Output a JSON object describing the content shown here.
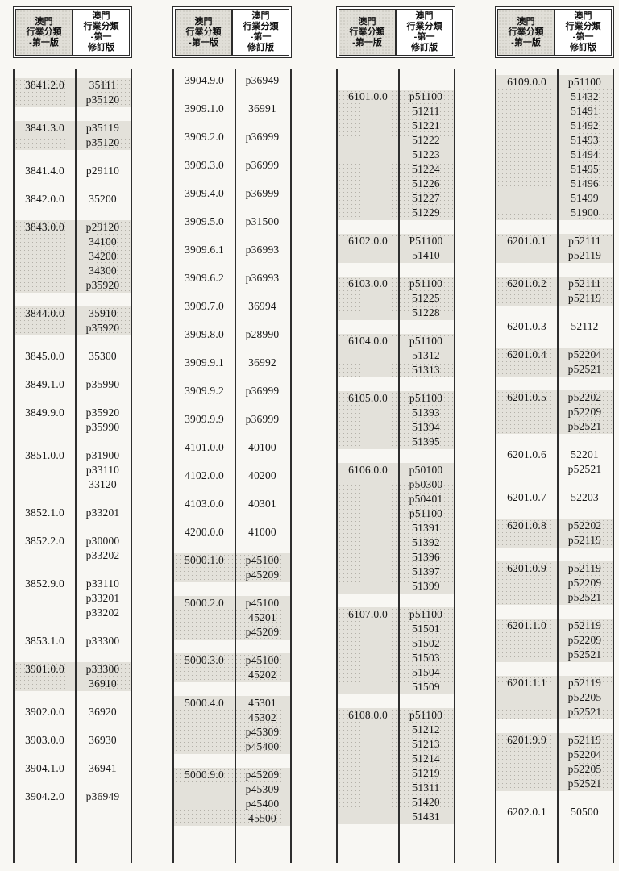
{
  "header": {
    "old_edition_lines": [
      "澳門",
      "行業分類",
      "-第一版"
    ],
    "revised_edition_lines": [
      "澳門",
      "行業分類",
      "-第一",
      "修訂版"
    ]
  },
  "colors": {
    "ink": "#171717",
    "rule_line": "#2e2e2e",
    "scan_shade": "#e3e1da",
    "paper": "#f8f7f3"
  },
  "panels": [
    {
      "entries": [
        {
          "old": "3841.2.0",
          "new": [
            "35111",
            "p35120"
          ],
          "shaded": true
        },
        {
          "old": "3841.3.0",
          "new": [
            "p35119",
            "p35120"
          ],
          "shaded": true
        },
        {
          "old": "3841.4.0",
          "new": [
            "p29110"
          ],
          "shaded": false
        },
        {
          "old": "3842.0.0",
          "new": [
            "35200"
          ],
          "shaded": false
        },
        {
          "old": "3843.0.0",
          "new": [
            "p29120",
            "34100",
            "34200",
            "34300",
            "p35920"
          ],
          "shaded": true
        },
        {
          "old": "3844.0.0",
          "new": [
            "35910",
            "p35920"
          ],
          "shaded": true
        },
        {
          "old": "3845.0.0",
          "new": [
            "35300"
          ],
          "shaded": false
        },
        {
          "old": "3849.1.0",
          "new": [
            "p35990"
          ],
          "shaded": false
        },
        {
          "old": "3849.9.0",
          "new": [
            "p35920",
            "p35990"
          ],
          "shaded": false
        },
        {
          "old": "3851.0.0",
          "new": [
            "p31900",
            "p33110",
            "33120"
          ],
          "shaded": false
        },
        {
          "old": "3852.1.0",
          "new": [
            "p33201"
          ],
          "shaded": false
        },
        {
          "old": "3852.2.0",
          "new": [
            "p30000",
            "p33202"
          ],
          "shaded": false
        },
        {
          "old": "3852.9.0",
          "new": [
            "p33110",
            "p33201",
            "p33202"
          ],
          "shaded": false
        },
        {
          "old": "3853.1.0",
          "new": [
            "p33300"
          ],
          "shaded": false
        },
        {
          "old": "3901.0.0",
          "new": [
            "p33300",
            "36910"
          ],
          "shaded": true
        },
        {
          "old": "3902.0.0",
          "new": [
            "36920"
          ],
          "shaded": false
        },
        {
          "old": "3903.0.0",
          "new": [
            "36930"
          ],
          "shaded": false
        },
        {
          "old": "3904.1.0",
          "new": [
            "36941"
          ],
          "shaded": false
        },
        {
          "old": "3904.2.0",
          "new": [
            "p36949"
          ],
          "shaded": false
        }
      ]
    },
    {
      "entries": [
        {
          "old": "3904.9.0",
          "new": [
            "p36949"
          ],
          "shaded": false
        },
        {
          "old": "3909.1.0",
          "new": [
            "36991"
          ],
          "shaded": false
        },
        {
          "old": "3909.2.0",
          "new": [
            "p36999"
          ],
          "shaded": false
        },
        {
          "old": "3909.3.0",
          "new": [
            "p36999"
          ],
          "shaded": false
        },
        {
          "old": "3909.4.0",
          "new": [
            "p36999"
          ],
          "shaded": false
        },
        {
          "old": "3909.5.0",
          "new": [
            "p31500"
          ],
          "shaded": false
        },
        {
          "old": "3909.6.1",
          "new": [
            "p36993"
          ],
          "shaded": false
        },
        {
          "old": "3909.6.2",
          "new": [
            "p36993"
          ],
          "shaded": false
        },
        {
          "old": "3909.7.0",
          "new": [
            "36994"
          ],
          "shaded": false
        },
        {
          "old": "3909.8.0",
          "new": [
            "p28990"
          ],
          "shaded": false
        },
        {
          "old": "3909.9.1",
          "new": [
            "36992"
          ],
          "shaded": false
        },
        {
          "old": "3909.9.2",
          "new": [
            "p36999"
          ],
          "shaded": false
        },
        {
          "old": "3909.9.9",
          "new": [
            "p36999"
          ],
          "shaded": false
        },
        {
          "old": "4101.0.0",
          "new": [
            "40100"
          ],
          "shaded": false
        },
        {
          "old": "4102.0.0",
          "new": [
            "40200"
          ],
          "shaded": false
        },
        {
          "old": "4103.0.0",
          "new": [
            "40301"
          ],
          "shaded": false
        },
        {
          "old": "4200.0.0",
          "new": [
            "41000"
          ],
          "shaded": false
        },
        {
          "old": "5000.1.0",
          "new": [
            "p45100",
            "p45209"
          ],
          "shaded": true
        },
        {
          "old": "5000.2.0",
          "new": [
            "p45100",
            "45201",
            "p45209"
          ],
          "shaded": true
        },
        {
          "old": "5000.3.0",
          "new": [
            "p45100",
            "45202"
          ],
          "shaded": true
        },
        {
          "old": "5000.4.0",
          "new": [
            "45301",
            "45302",
            "p45309",
            "p45400"
          ],
          "shaded": true
        },
        {
          "old": "5000.9.0",
          "new": [
            "p45209",
            "p45309",
            "p45400",
            "45500"
          ],
          "shaded": true
        }
      ]
    },
    {
      "entries": [
        {
          "old": "6101.0.0",
          "new": [
            "p51100",
            "51211",
            "51221",
            "51222",
            "51223",
            "51224",
            "51226",
            "51227",
            "51229"
          ],
          "shaded": true
        },
        {
          "old": "6102.0.0",
          "new": [
            "P51100",
            "51410"
          ],
          "shaded": true
        },
        {
          "old": "6103.0.0",
          "new": [
            "p51100",
            "51225",
            "51228"
          ],
          "shaded": true
        },
        {
          "old": "6104.0.0",
          "new": [
            "p51100",
            "51312",
            "51313"
          ],
          "shaded": true
        },
        {
          "old": "6105.0.0",
          "new": [
            "p51100",
            "51393",
            "51394",
            "51395"
          ],
          "shaded": true
        },
        {
          "old": "6106.0.0",
          "new": [
            "p50100",
            "p50300",
            "p50401",
            "p51100",
            "51391",
            "51392",
            "51396",
            "51397",
            "51399"
          ],
          "shaded": true
        },
        {
          "old": "6107.0.0",
          "new": [
            "p51100",
            "51501",
            "51502",
            "51503",
            "51504",
            "51509"
          ],
          "shaded": true
        },
        {
          "old": "6108.0.0",
          "new": [
            "p51100",
            "51212",
            "51213",
            "51214",
            "51219",
            "51311",
            "51420",
            "51431"
          ],
          "shaded": true
        }
      ]
    },
    {
      "entries": [
        {
          "old": "6109.0.0",
          "new": [
            "p51100",
            "51432",
            "51491",
            "51492",
            "51493",
            "51494",
            "51495",
            "51496",
            "51499",
            "51900"
          ],
          "shaded": true
        },
        {
          "old": "6201.0.1",
          "new": [
            "p52111",
            "p52119"
          ],
          "shaded": true
        },
        {
          "old": "6201.0.2",
          "new": [
            "p52111",
            "p52119"
          ],
          "shaded": true
        },
        {
          "old": "6201.0.3",
          "new": [
            "52112"
          ],
          "shaded": false
        },
        {
          "old": "6201.0.4",
          "new": [
            "p52204",
            "p52521"
          ],
          "shaded": true
        },
        {
          "old": "6201.0.5",
          "new": [
            "p52202",
            "p52209",
            "p52521"
          ],
          "shaded": true
        },
        {
          "old": "6201.0.6",
          "new": [
            "52201",
            "p52521"
          ],
          "shaded": false
        },
        {
          "old": "6201.0.7",
          "new": [
            "52203"
          ],
          "shaded": false
        },
        {
          "old": "6201.0.8",
          "new": [
            "p52202",
            "p52119"
          ],
          "shaded": true
        },
        {
          "old": "6201.0.9",
          "new": [
            "p52119",
            "p52209",
            "p52521"
          ],
          "shaded": true
        },
        {
          "old": "6201.1.0",
          "new": [
            "p52119",
            "p52209",
            "p52521"
          ],
          "shaded": true
        },
        {
          "old": "6201.1.1",
          "new": [
            "p52119",
            "p52205",
            "p52521"
          ],
          "shaded": true
        },
        {
          "old": "6201.9.9",
          "new": [
            "p52119",
            "p52204",
            "p52205",
            "p52521"
          ],
          "shaded": true
        },
        {
          "old": "6202.0.1",
          "new": [
            "50500"
          ],
          "shaded": false
        }
      ]
    }
  ]
}
